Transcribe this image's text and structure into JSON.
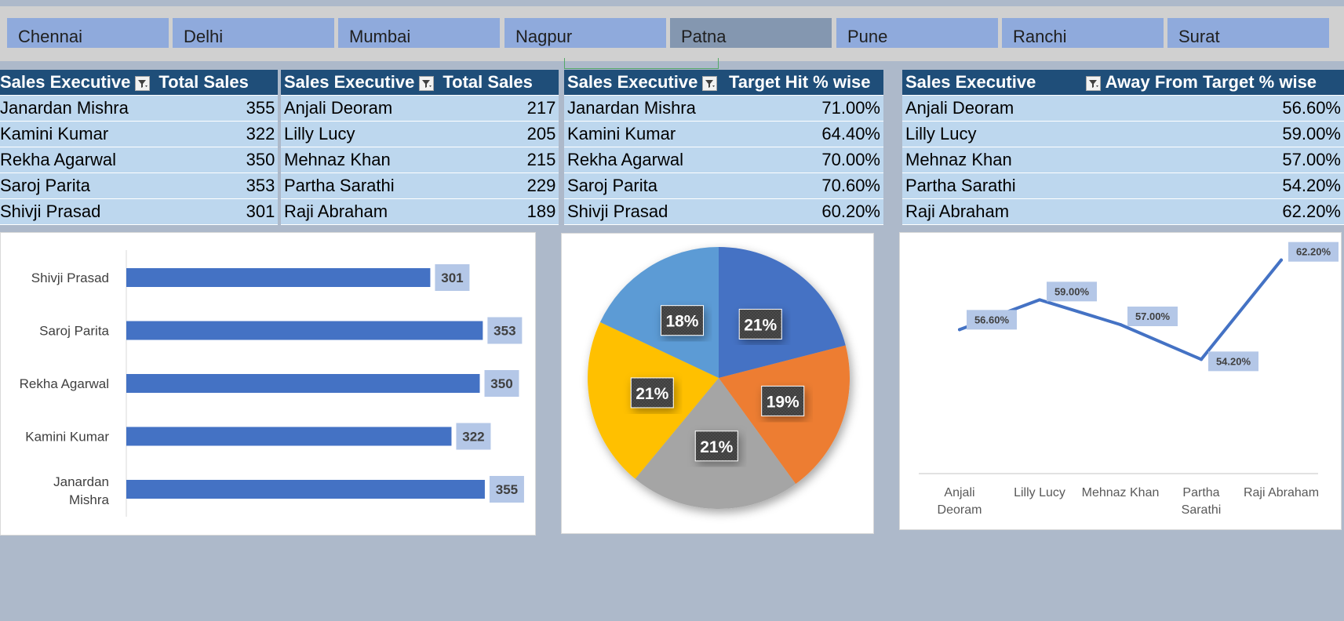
{
  "slicer": {
    "items": [
      {
        "label": "Chennai",
        "selected": false
      },
      {
        "label": "Delhi",
        "selected": false
      },
      {
        "label": "Mumbai",
        "selected": false
      },
      {
        "label": "Nagpur",
        "selected": false
      },
      {
        "label": "Patna",
        "selected": true
      },
      {
        "label": "Pune",
        "selected": false
      },
      {
        "label": "Ranchi",
        "selected": false
      },
      {
        "label": "Surat",
        "selected": false
      }
    ]
  },
  "tables": [
    {
      "col1": "Sales Executive",
      "col2": "Total Sales",
      "rows": [
        [
          "Janardan Mishra",
          "355"
        ],
        [
          "Kamini Kumar",
          "322"
        ],
        [
          "Rekha Agarwal",
          "350"
        ],
        [
          "Saroj Parita",
          "353"
        ],
        [
          "Shivji Prasad",
          "301"
        ]
      ]
    },
    {
      "col1": "Sales Executive",
      "col2": "Total Sales",
      "rows": [
        [
          "Anjali Deoram",
          "217"
        ],
        [
          "Lilly Lucy",
          "205"
        ],
        [
          "Mehnaz Khan",
          "215"
        ],
        [
          "Partha Sarathi",
          "229"
        ],
        [
          "Raji Abraham",
          "189"
        ]
      ]
    },
    {
      "col1": "Sales Executive",
      "col2": "Target Hit % wise",
      "rows": [
        [
          "Janardan Mishra",
          "71.00%"
        ],
        [
          "Kamini Kumar",
          "64.40%"
        ],
        [
          "Rekha Agarwal",
          "70.00%"
        ],
        [
          "Saroj Parita",
          "70.60%"
        ],
        [
          "Shivji Prasad",
          "60.20%"
        ]
      ]
    },
    {
      "col1": "Sales Executive",
      "col2": "Away From Target % wise",
      "rows": [
        [
          "Anjali Deoram",
          "56.60%"
        ],
        [
          "Lilly Lucy",
          "59.00%"
        ],
        [
          "Mehnaz Khan",
          "57.00%"
        ],
        [
          "Partha Sarathi",
          "54.20%"
        ],
        [
          "Raji Abraham",
          "62.20%"
        ]
      ]
    }
  ],
  "icons": {
    "filter": "filter-dropdown-icon"
  },
  "colors": {
    "background": "#adb9ca",
    "header": "#1f4e79",
    "row": "#bdd7ee",
    "slicer": "#8faadc",
    "slicer_selected": "#8497b0",
    "bar": "#4472c4",
    "label_bg": "#b4c7e7"
  },
  "chart_data": [
    {
      "type": "bar",
      "orientation": "horizontal",
      "categories": [
        "Shivji Prasad",
        "Saroj Parita",
        "Rekha Agarwal",
        "Kamini Kumar",
        "Janardan Mishra"
      ],
      "category_lines": [
        [
          "Shivji Prasad"
        ],
        [
          "Saroj Parita"
        ],
        [
          "Rekha Agarwal"
        ],
        [
          "Kamini Kumar"
        ],
        [
          "Janardan",
          "Mishra"
        ]
      ],
      "values": [
        301,
        353,
        350,
        322,
        355
      ],
      "data_labels": [
        "301",
        "353",
        "350",
        "322",
        "355"
      ],
      "xlim": [
        0,
        370
      ],
      "color": "#4472c4",
      "grid": false
    },
    {
      "type": "pie",
      "values": [
        21,
        19,
        21,
        21,
        18
      ],
      "data_labels": [
        "21%",
        "19%",
        "21%",
        "21%",
        "18%"
      ],
      "colors": [
        "#4472c4",
        "#ed7d31",
        "#a5a5a5",
        "#ffc000",
        "#5b9bd5"
      ],
      "start": "12 o'clock",
      "direction": "clockwise"
    },
    {
      "type": "line",
      "categories": [
        "Anjali Deoram",
        "Lilly Lucy",
        "Mehnaz Khan",
        "Partha Sarathi",
        "Raji Abraham"
      ],
      "category_lines": [
        [
          "Anjali",
          "Deoram"
        ],
        [
          "Lilly Lucy"
        ],
        [
          "Mehnaz Khan"
        ],
        [
          "Partha",
          "Sarathi"
        ],
        [
          "Raji Abraham"
        ]
      ],
      "values": [
        56.6,
        59.0,
        57.0,
        54.2,
        62.2
      ],
      "data_labels": [
        "56.60%",
        "59.00%",
        "57.00%",
        "54.20%",
        "62.20%"
      ],
      "ylim": [
        45,
        63
      ],
      "color": "#4472c4",
      "grid": false
    }
  ]
}
